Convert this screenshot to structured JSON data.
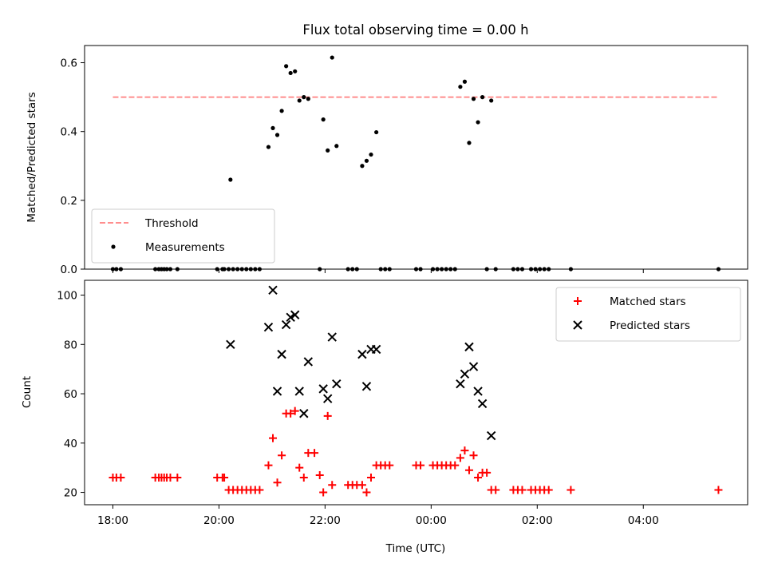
{
  "figure": {
    "title": "Flux total observing time = 0.00 h",
    "xlabel": "Time (UTC)"
  },
  "chart_data": [
    {
      "type": "scatter",
      "ylabel": "Matched/Predicted stars",
      "xlim": [
        "17:28",
        "05:58"
      ],
      "ylim": [
        0,
        0.65
      ],
      "y_ticks": [
        "0.0",
        "0.2",
        "0.4",
        "0.6"
      ],
      "legend": {
        "placement": "lower-left",
        "entries": [
          "Threshold",
          "Measurements"
        ]
      },
      "threshold": {
        "name": "Threshold",
        "y": 0.5,
        "x_range": [
          "18:00",
          "05:25"
        ],
        "color": "#ff7f7f",
        "style": "dashed"
      },
      "series": [
        {
          "name": "Measurements",
          "marker": "dot",
          "color": "#000000",
          "points": [
            [
              "18:00",
              0
            ],
            [
              "18:04",
              0
            ],
            [
              "18:09",
              0
            ],
            [
              "18:48",
              0
            ],
            [
              "18:52",
              0
            ],
            [
              "18:55",
              0
            ],
            [
              "18:58",
              0
            ],
            [
              "19:01",
              0
            ],
            [
              "19:05",
              0
            ],
            [
              "19:13",
              0
            ],
            [
              "19:58",
              0
            ],
            [
              "20:04",
              0
            ],
            [
              "20:06",
              0
            ],
            [
              "20:11",
              0
            ],
            [
              "20:16",
              0
            ],
            [
              "20:21",
              0
            ],
            [
              "20:26",
              0
            ],
            [
              "20:31",
              0
            ],
            [
              "20:36",
              0
            ],
            [
              "20:41",
              0
            ],
            [
              "20:46",
              0
            ],
            [
              "20:13",
              0.26
            ],
            [
              "20:56",
              0.355
            ],
            [
              "21:01",
              0.41
            ],
            [
              "21:06",
              0.39
            ],
            [
              "21:11",
              0.46
            ],
            [
              "21:16",
              0.59
            ],
            [
              "21:21",
              0.57
            ],
            [
              "21:26",
              0.575
            ],
            [
              "21:31",
              0.49
            ],
            [
              "21:36",
              0.5
            ],
            [
              "21:41",
              0.495
            ],
            [
              "21:54",
              0
            ],
            [
              "21:58",
              0.435
            ],
            [
              "22:03",
              0.345
            ],
            [
              "22:08",
              0.615
            ],
            [
              "22:13",
              0.358
            ],
            [
              "22:26",
              0
            ],
            [
              "22:31",
              0
            ],
            [
              "22:36",
              0
            ],
            [
              "22:42",
              0.3
            ],
            [
              "22:47",
              0.315
            ],
            [
              "22:52",
              0.333
            ],
            [
              "22:58",
              0.398
            ],
            [
              "23:03",
              0
            ],
            [
              "23:08",
              0
            ],
            [
              "23:13",
              0
            ],
            [
              "23:43",
              0
            ],
            [
              "23:48",
              0
            ],
            [
              "00:02",
              0
            ],
            [
              "00:07",
              0
            ],
            [
              "00:12",
              0
            ],
            [
              "00:17",
              0
            ],
            [
              "00:22",
              0
            ],
            [
              "00:27",
              0
            ],
            [
              "00:33",
              0.53
            ],
            [
              "00:38",
              0.545
            ],
            [
              "00:43",
              0.367
            ],
            [
              "00:48",
              0.495
            ],
            [
              "00:53",
              0.427
            ],
            [
              "00:58",
              0.5
            ],
            [
              "01:03",
              0
            ],
            [
              "01:08",
              0.49
            ],
            [
              "01:13",
              0
            ],
            [
              "01:33",
              0
            ],
            [
              "01:38",
              0
            ],
            [
              "01:43",
              0
            ],
            [
              "01:53",
              0
            ],
            [
              "01:58",
              0
            ],
            [
              "02:03",
              0
            ],
            [
              "02:08",
              0
            ],
            [
              "02:13",
              0
            ],
            [
              "02:38",
              0
            ],
            [
              "05:25",
              0
            ]
          ]
        }
      ]
    },
    {
      "type": "scatter",
      "ylabel": "Count",
      "xlim": [
        "17:28",
        "05:58"
      ],
      "ylim": [
        15,
        106
      ],
      "y_ticks": [
        "20",
        "40",
        "60",
        "80",
        "100"
      ],
      "x_ticks": [
        "18:00",
        "20:00",
        "22:00",
        "00:00",
        "02:00",
        "04:00"
      ],
      "legend": {
        "placement": "upper-right",
        "entries": [
          "Matched stars",
          "Predicted stars"
        ]
      },
      "series": [
        {
          "name": "Matched stars",
          "marker": "plus",
          "color": "#ff0000",
          "points": [
            [
              "18:00",
              26
            ],
            [
              "18:04",
              26
            ],
            [
              "18:09",
              26
            ],
            [
              "18:48",
              26
            ],
            [
              "18:52",
              26
            ],
            [
              "18:55",
              26
            ],
            [
              "18:58",
              26
            ],
            [
              "19:01",
              26
            ],
            [
              "19:05",
              26
            ],
            [
              "19:13",
              26
            ],
            [
              "19:58",
              26
            ],
            [
              "20:06",
              26
            ],
            [
              "20:04",
              26
            ],
            [
              "20:11",
              21
            ],
            [
              "20:16",
              21
            ],
            [
              "20:21",
              21
            ],
            [
              "20:26",
              21
            ],
            [
              "20:31",
              21
            ],
            [
              "20:36",
              21
            ],
            [
              "20:41",
              21
            ],
            [
              "20:46",
              21
            ],
            [
              "20:56",
              31
            ],
            [
              "21:01",
              42
            ],
            [
              "21:06",
              24
            ],
            [
              "21:11",
              35
            ],
            [
              "21:16",
              52
            ],
            [
              "21:21",
              52
            ],
            [
              "21:26",
              53
            ],
            [
              "21:31",
              30
            ],
            [
              "21:36",
              26
            ],
            [
              "21:41",
              36
            ],
            [
              "21:48",
              36
            ],
            [
              "21:54",
              27
            ],
            [
              "21:58",
              20
            ],
            [
              "22:03",
              51
            ],
            [
              "22:08",
              23
            ],
            [
              "22:26",
              23
            ],
            [
              "22:31",
              23
            ],
            [
              "22:36",
              23
            ],
            [
              "22:42",
              23
            ],
            [
              "22:47",
              20
            ],
            [
              "22:52",
              26
            ],
            [
              "22:58",
              31
            ],
            [
              "23:03",
              31
            ],
            [
              "23:08",
              31
            ],
            [
              "23:13",
              31
            ],
            [
              "23:43",
              31
            ],
            [
              "23:48",
              31
            ],
            [
              "00:02",
              31
            ],
            [
              "00:07",
              31
            ],
            [
              "00:12",
              31
            ],
            [
              "00:17",
              31
            ],
            [
              "00:22",
              31
            ],
            [
              "00:27",
              31
            ],
            [
              "00:33",
              34
            ],
            [
              "00:38",
              37
            ],
            [
              "00:43",
              29
            ],
            [
              "00:48",
              35
            ],
            [
              "00:53",
              26
            ],
            [
              "00:58",
              28
            ],
            [
              "01:03",
              28
            ],
            [
              "01:08",
              21
            ],
            [
              "01:13",
              21
            ],
            [
              "01:33",
              21
            ],
            [
              "01:38",
              21
            ],
            [
              "01:43",
              21
            ],
            [
              "01:53",
              21
            ],
            [
              "01:58",
              21
            ],
            [
              "02:03",
              21
            ],
            [
              "02:08",
              21
            ],
            [
              "02:13",
              21
            ],
            [
              "02:38",
              21
            ],
            [
              "05:25",
              21
            ]
          ]
        },
        {
          "name": "Predicted stars",
          "marker": "x",
          "color": "#000000",
          "points": [
            [
              "20:13",
              80
            ],
            [
              "20:56",
              87
            ],
            [
              "21:01",
              102
            ],
            [
              "21:06",
              61
            ],
            [
              "21:11",
              76
            ],
            [
              "21:16",
              88
            ],
            [
              "21:21",
              91
            ],
            [
              "21:26",
              92
            ],
            [
              "21:31",
              61
            ],
            [
              "21:36",
              52
            ],
            [
              "21:41",
              73
            ],
            [
              "21:58",
              62
            ],
            [
              "22:03",
              58
            ],
            [
              "22:08",
              83
            ],
            [
              "22:13",
              64
            ],
            [
              "22:42",
              76
            ],
            [
              "22:47",
              63
            ],
            [
              "22:52",
              78
            ],
            [
              "22:58",
              78
            ],
            [
              "00:33",
              64
            ],
            [
              "00:38",
              68
            ],
            [
              "00:43",
              79
            ],
            [
              "00:48",
              71
            ],
            [
              "00:53",
              61
            ],
            [
              "00:58",
              56
            ],
            [
              "01:08",
              43
            ]
          ]
        }
      ]
    }
  ]
}
